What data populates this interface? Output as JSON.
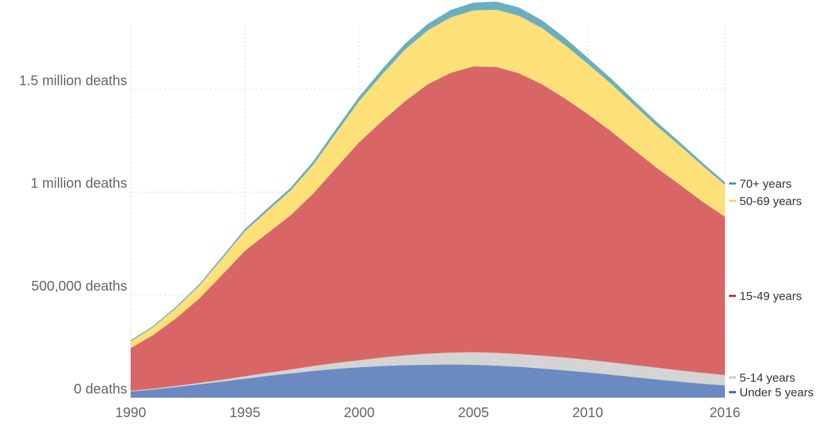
{
  "chart_data": {
    "type": "area",
    "stacked": true,
    "x": [
      1990,
      1991,
      1992,
      1993,
      1994,
      1995,
      1996,
      1997,
      1998,
      1999,
      2000,
      2001,
      2002,
      2003,
      2004,
      2005,
      2006,
      2007,
      2008,
      2009,
      2010,
      2011,
      2012,
      2013,
      2014,
      2015,
      2016
    ],
    "series": [
      {
        "name": "Under 5 years",
        "color": "#6b8ac2",
        "values": [
          30000,
          40000,
          52000,
          65000,
          78000,
          92000,
          106000,
          118000,
          130000,
          140000,
          148000,
          154000,
          158000,
          160000,
          161000,
          160000,
          156000,
          150000,
          142000,
          133000,
          123000,
          112000,
          100000,
          89000,
          78000,
          68000,
          60000
        ]
      },
      {
        "name": "5-14 years",
        "color": "#d4d4d4",
        "values": [
          3000,
          4000,
          5000,
          7000,
          9000,
          12000,
          15000,
          19000,
          24000,
          29000,
          34000,
          41000,
          48000,
          54000,
          58000,
          61000,
          62000,
          62000,
          62000,
          62000,
          61000,
          60000,
          59000,
          57000,
          55000,
          53000,
          50000
        ]
      },
      {
        "name": "15-49 years",
        "color": "#d96666",
        "values": [
          208000,
          262000,
          330000,
          410000,
          510000,
          610000,
          680000,
          750000,
          840000,
          950000,
          1060000,
          1150000,
          1235000,
          1310000,
          1360000,
          1390000,
          1390000,
          1365000,
          1320000,
          1260000,
          1195000,
          1125000,
          1048000,
          973000,
          905000,
          834000,
          770000
        ]
      },
      {
        "name": "50-69 years",
        "color": "#fde078",
        "values": [
          32000,
          38000,
          50000,
          62000,
          78000,
          95000,
          108000,
          120000,
          140000,
          170000,
          200000,
          226000,
          251000,
          262000,
          270000,
          272000,
          278000,
          280000,
          273000,
          260000,
          244000,
          231000,
          218000,
          204000,
          190000,
          175000,
          155000
        ]
      },
      {
        "name": "70+ years",
        "color": "#6aafbf",
        "values": [
          6000,
          6000,
          7000,
          8000,
          10000,
          12000,
          13000,
          14000,
          17000,
          20000,
          22000,
          26000,
          29000,
          32000,
          36000,
          38000,
          40000,
          40000,
          38000,
          35000,
          30000,
          26000,
          23000,
          20000,
          17000,
          15000,
          13000
        ]
      }
    ],
    "yticks": [
      {
        "value": 0,
        "label": "0 deaths"
      },
      {
        "value": 500000,
        "label": "500,000 deaths"
      },
      {
        "value": 1000000,
        "label": "1 million deaths"
      },
      {
        "value": 1500000,
        "label": "1.5 million deaths"
      }
    ],
    "xticks": [
      1990,
      1995,
      2000,
      2005,
      2010,
      2016
    ],
    "ylim": [
      0,
      1900000
    ],
    "xlim": [
      1990,
      2016
    ],
    "legend_order": [
      "70+ years",
      "50-69 years",
      "15-49 years",
      "5-14 years",
      "Under 5 years"
    ],
    "legend_colors": {
      "70+ years": "#2a9da0",
      "50-69 years": "#fcd34d",
      "15-49 years": "#cc2a2a",
      "5-14 years": "#c8c8c8",
      "Under 5 years": "#2e5ea7"
    },
    "grid": true,
    "legend_placement": "right, labels at series ends"
  }
}
